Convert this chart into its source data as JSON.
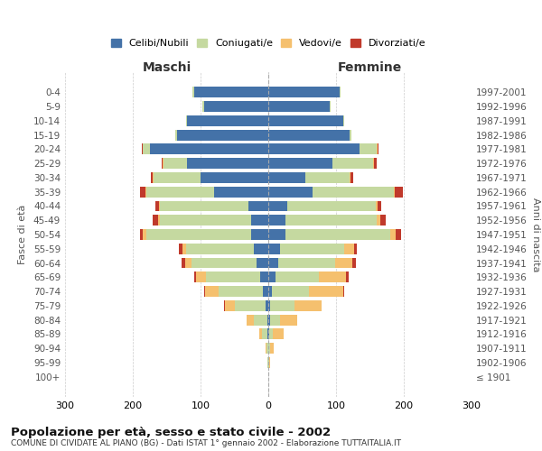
{
  "age_groups": [
    "100+",
    "95-99",
    "90-94",
    "85-89",
    "80-84",
    "75-79",
    "70-74",
    "65-69",
    "60-64",
    "55-59",
    "50-54",
    "45-49",
    "40-44",
    "35-39",
    "30-34",
    "25-29",
    "20-24",
    "15-19",
    "10-14",
    "5-9",
    "0-4"
  ],
  "birth_years": [
    "≤ 1901",
    "1902-1906",
    "1907-1911",
    "1912-1916",
    "1917-1921",
    "1922-1926",
    "1927-1931",
    "1932-1936",
    "1937-1941",
    "1942-1946",
    "1947-1951",
    "1952-1956",
    "1957-1961",
    "1962-1966",
    "1967-1971",
    "1972-1976",
    "1977-1981",
    "1982-1986",
    "1987-1991",
    "1992-1996",
    "1997-2001"
  ],
  "male": {
    "celibi": [
      0,
      0,
      0,
      1,
      2,
      4,
      8,
      12,
      18,
      22,
      25,
      25,
      30,
      80,
      100,
      120,
      175,
      135,
      120,
      95,
      110
    ],
    "coniugati": [
      0,
      1,
      3,
      8,
      20,
      45,
      65,
      80,
      95,
      100,
      155,
      135,
      130,
      100,
      70,
      35,
      10,
      2,
      2,
      2,
      2
    ],
    "vedovi": [
      0,
      0,
      1,
      4,
      10,
      15,
      20,
      15,
      10,
      5,
      5,
      3,
      2,
      2,
      1,
      1,
      1,
      0,
      0,
      0,
      0
    ],
    "divorziati": [
      0,
      0,
      0,
      0,
      0,
      1,
      2,
      3,
      5,
      5,
      5,
      8,
      5,
      8,
      3,
      2,
      1,
      0,
      0,
      0,
      0
    ]
  },
  "female": {
    "nubili": [
      0,
      0,
      0,
      1,
      2,
      3,
      5,
      10,
      14,
      17,
      25,
      25,
      28,
      65,
      55,
      95,
      135,
      120,
      110,
      90,
      105
    ],
    "coniugate": [
      0,
      1,
      3,
      6,
      15,
      35,
      55,
      65,
      85,
      95,
      155,
      135,
      130,
      120,
      65,
      60,
      25,
      2,
      2,
      2,
      2
    ],
    "vedove": [
      0,
      2,
      5,
      15,
      25,
      40,
      50,
      40,
      25,
      15,
      8,
      5,
      3,
      2,
      1,
      1,
      1,
      0,
      0,
      0,
      0
    ],
    "divorziate": [
      0,
      0,
      0,
      0,
      1,
      1,
      2,
      3,
      5,
      3,
      8,
      8,
      5,
      12,
      4,
      4,
      2,
      0,
      0,
      0,
      0
    ]
  },
  "colors": {
    "celibi_nubili": "#4472a8",
    "coniugati": "#c5d9a0",
    "vedovi": "#f5c06e",
    "divorziati": "#c0392b"
  },
  "title": "Popolazione per età, sesso e stato civile - 2002",
  "subtitle": "COMUNE DI CIVIDATE AL PIANO (BG) - Dati ISTAT 1° gennaio 2002 - Elaborazione TUTTAITALIA.IT",
  "xlabel_left": "Maschi",
  "xlabel_right": "Femmine",
  "ylabel_left": "Fasce di età",
  "ylabel_right": "Anni di nascita",
  "xlim": 300,
  "legend_labels": [
    "Celibi/Nubili",
    "Coniugati/e",
    "Vedovi/e",
    "Divorziati/e"
  ],
  "bg_color": "#ffffff",
  "grid_color": "#cccccc"
}
